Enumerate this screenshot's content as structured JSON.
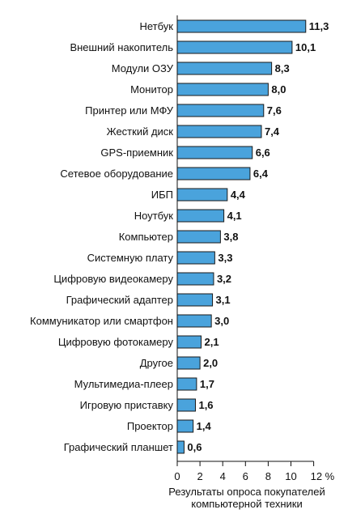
{
  "chart_data": {
    "type": "bar",
    "orientation": "horizontal",
    "categories": [
      "Нетбук",
      "Внешний накопитель",
      "Модули ОЗУ",
      "Монитор",
      "Принтер или МФУ",
      "Жесткий диск",
      "GPS-приемник",
      "Сетевое оборудование",
      "ИБП",
      "Ноутбук",
      "Компьютер",
      "Системную плату",
      "Цифровую видеокамеру",
      "Графический адаптер",
      "Коммуникатор или смартфон",
      "Цифровую фотокамеру",
      "Другое",
      "Мультимедиа-плеер",
      "Игровую приставку",
      "Проектор",
      "Графический планшет"
    ],
    "values": [
      11.3,
      10.1,
      8.3,
      8.0,
      7.6,
      7.4,
      6.6,
      6.4,
      4.4,
      4.1,
      3.8,
      3.3,
      3.2,
      3.1,
      3.0,
      2.1,
      2.0,
      1.7,
      1.6,
      1.4,
      0.6
    ],
    "value_labels": [
      "11,3",
      "10,1",
      "8,3",
      "8,0",
      "7,6",
      "7,4",
      "6,6",
      "6,4",
      "4,4",
      "4,1",
      "3,8",
      "3,3",
      "3,2",
      "3,1",
      "3,0",
      "2,1",
      "2,0",
      "1,7",
      "1,6",
      "1,4",
      "0,6"
    ],
    "xticks": [
      "0",
      "2",
      "4",
      "6",
      "8",
      "10",
      "12 %"
    ],
    "xlim": [
      0,
      12
    ],
    "xlabel_lines": [
      "Результаты опроса покупателей",
      "компьютерной техники"
    ],
    "bar_color": "#4aa3dc",
    "bar_edge_color": "#1a1a1a"
  }
}
